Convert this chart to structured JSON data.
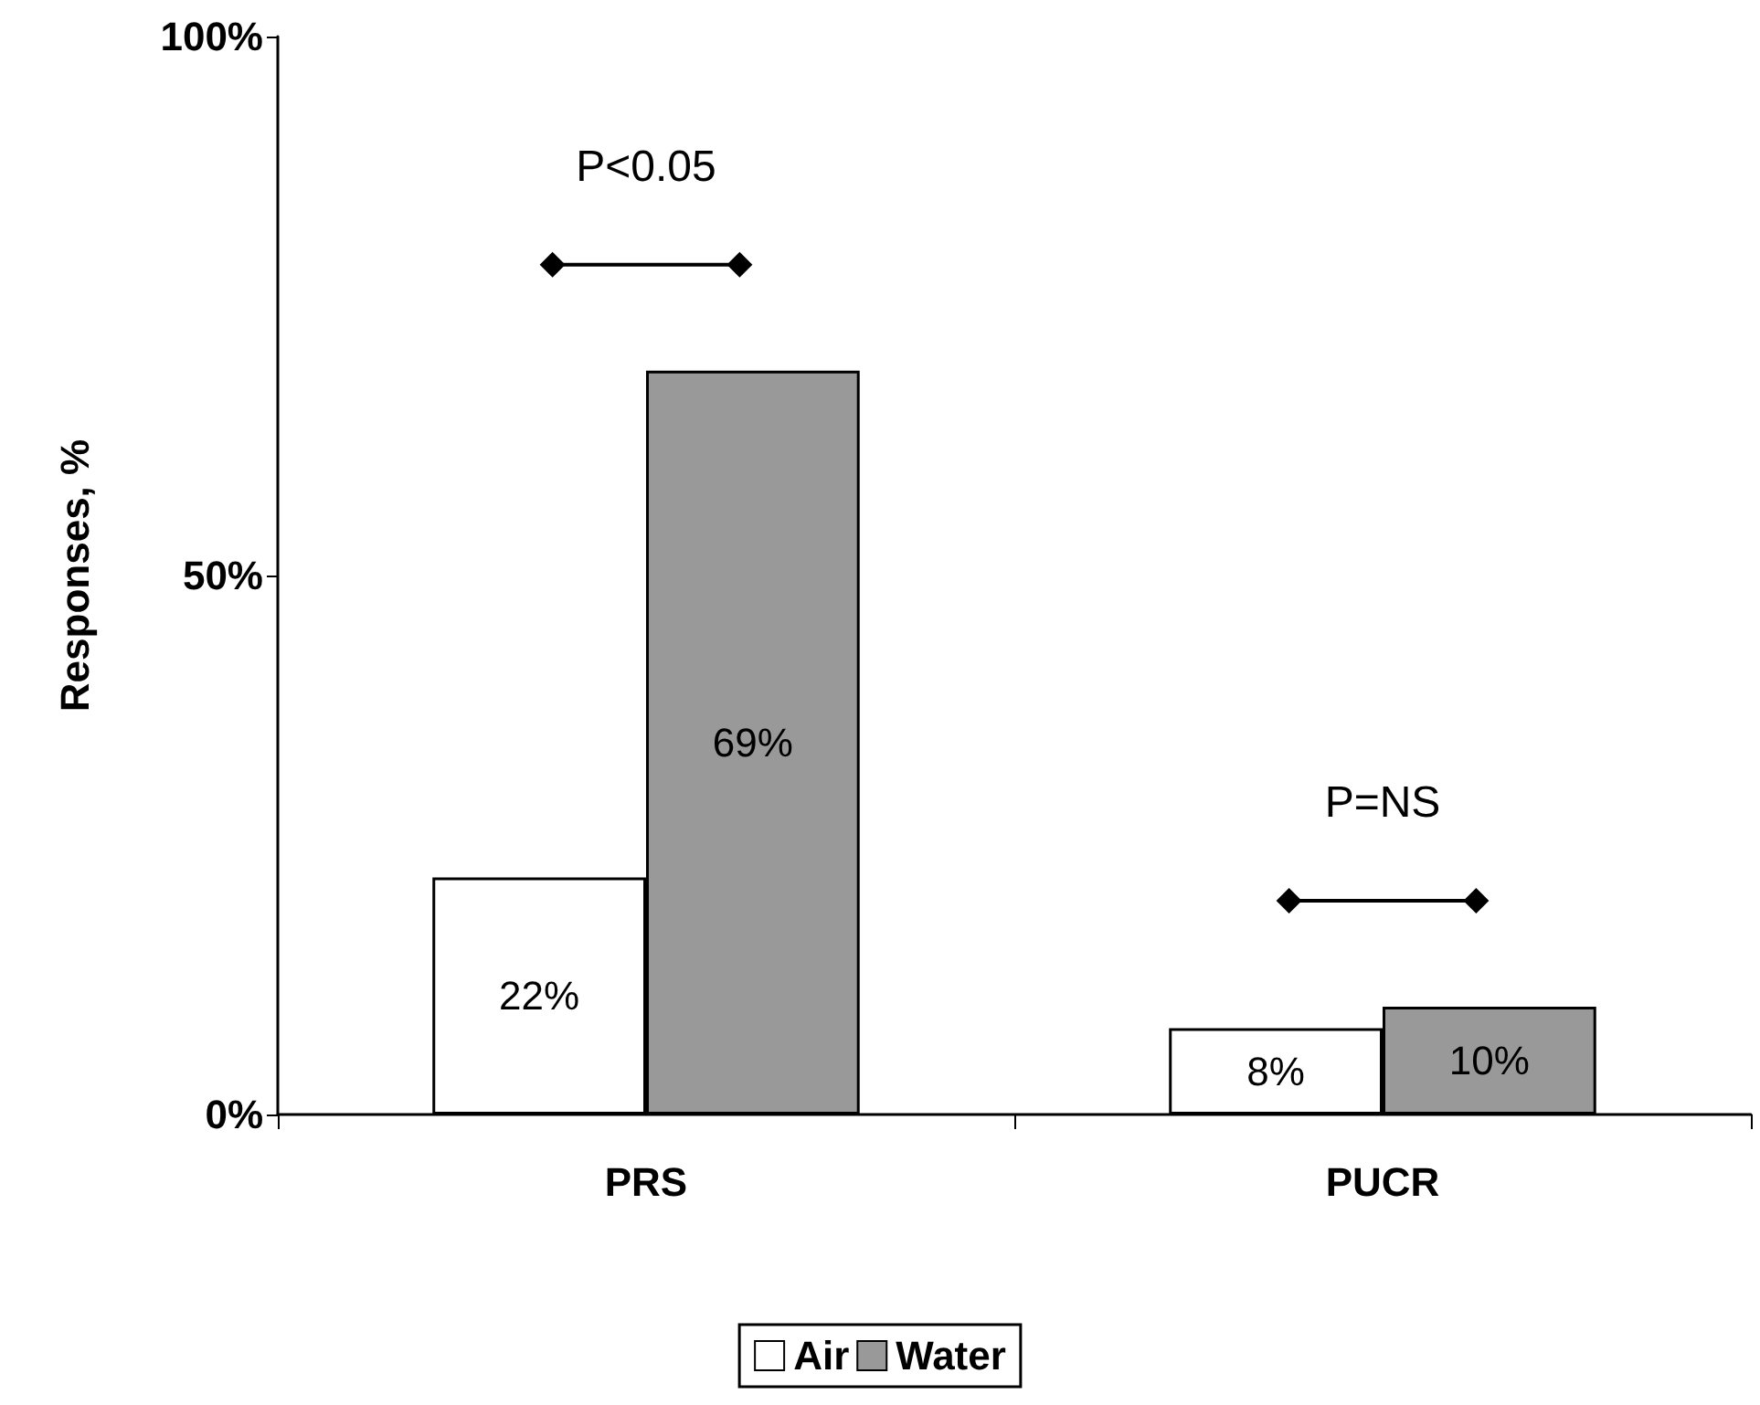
{
  "chart_data": {
    "type": "bar",
    "ylabel": "Responses, %",
    "categories": [
      "PRS",
      "PUCR"
    ],
    "series": [
      {
        "name": "Air",
        "color": "#ffffff",
        "values": [
          22,
          8
        ],
        "value_labels": [
          "22%",
          "8%"
        ]
      },
      {
        "name": "Water",
        "color": "#999999",
        "values": [
          69,
          10
        ],
        "value_labels": [
          "69%",
          "10%"
        ]
      }
    ],
    "ylim": [
      0,
      100
    ],
    "yticks": [
      {
        "value": 0,
        "label": "0%"
      },
      {
        "value": 50,
        "label": "50%"
      },
      {
        "value": 100,
        "label": "100%"
      }
    ],
    "grid": false,
    "legend": "bottom",
    "annotations": [
      "P<0.05",
      "P=NS"
    ]
  }
}
